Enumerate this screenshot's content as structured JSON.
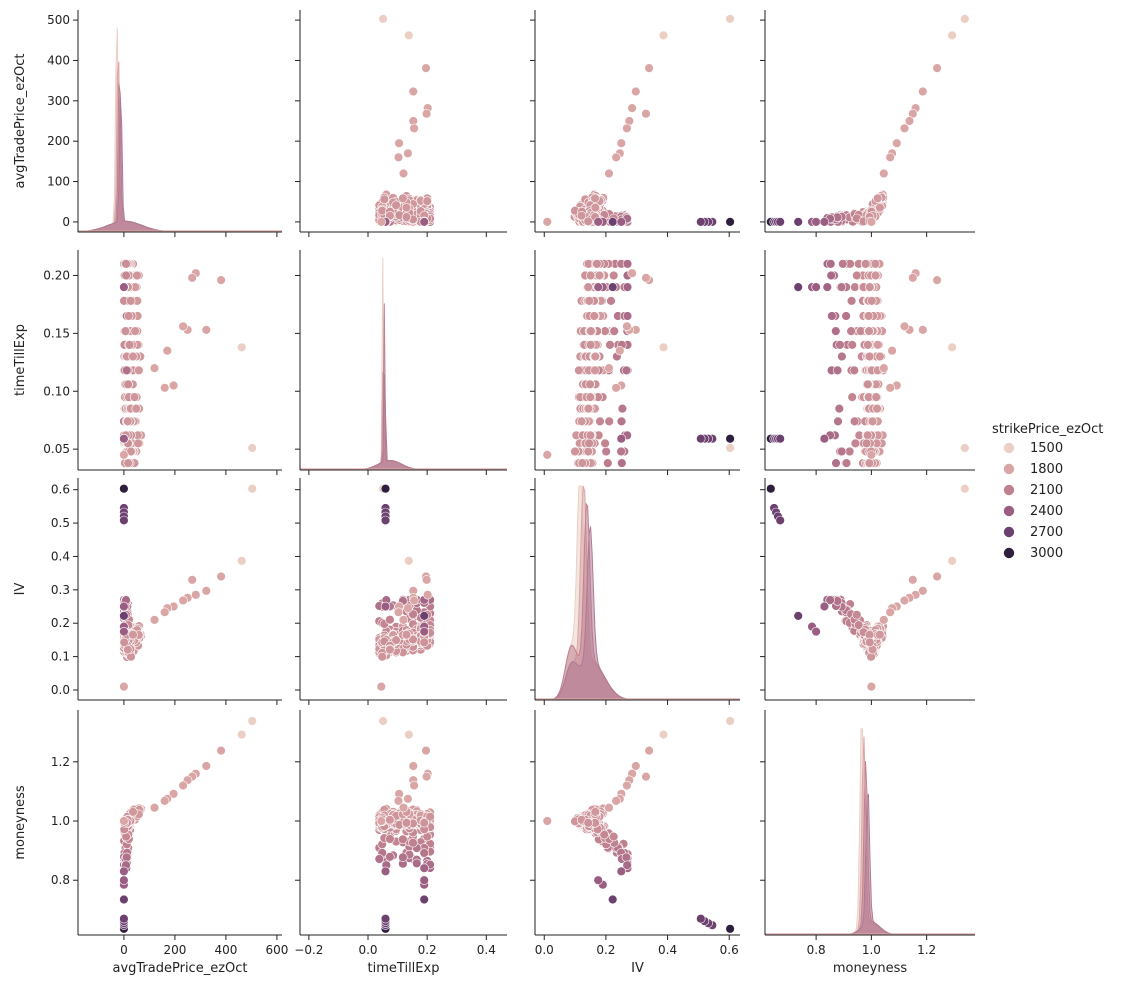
{
  "chart_data": {
    "type": "scatter",
    "variables": [
      "avgTradePrice_ezOct",
      "timeTillExp",
      "IV",
      "moneyness"
    ],
    "grid": false,
    "diagonal": "kde",
    "legend": {
      "title": "strikePrice_ezOct",
      "placement": "right",
      "entries": [
        {
          "label": "1500",
          "color": "#ebcfc5"
        },
        {
          "label": "1800",
          "color": "#d9a6a5"
        },
        {
          "label": "2100",
          "color": "#c0818f"
        },
        {
          "label": "2400",
          "color": "#9a5e83"
        },
        {
          "label": "2700",
          "color": "#6c416f"
        },
        {
          "label": "3000",
          "color": "#2f1f3f"
        }
      ]
    },
    "axes": {
      "avgTradePrice_ezOct": {
        "range": [
          -180,
          620
        ],
        "ticks": [
          0,
          200,
          400,
          600
        ],
        "tick_labels": [
          "0",
          "200",
          "400",
          "600"
        ]
      },
      "timeTillExp": {
        "range": [
          -0.23,
          0.47
        ],
        "ticks": [
          -0.2,
          0.0,
          0.2,
          0.4
        ],
        "tick_labels": [
          "−0.2",
          "0.0",
          "0.2",
          "0.4"
        ]
      },
      "IV": {
        "range": [
          -0.03,
          0.635
        ],
        "ticks": [
          0.0,
          0.2,
          0.4,
          0.6
        ],
        "tick_labels": [
          "0.0",
          "0.2",
          "0.4",
          "0.6"
        ]
      },
      "moneyness": {
        "range": [
          0.615,
          1.375
        ],
        "ticks": [
          0.8,
          1.0,
          1.2
        ],
        "tick_labels": [
          "0.8",
          "1.0",
          "1.2"
        ]
      }
    },
    "row_axes": {
      "avgTradePrice_ezOct": {
        "range": [
          -25,
          525
        ],
        "ticks": [
          0,
          100,
          200,
          300,
          400,
          500
        ],
        "tick_labels": [
          "0",
          "100",
          "200",
          "300",
          "400",
          "500"
        ]
      },
      "timeTillExp": {
        "range": [
          0.032,
          0.222
        ],
        "ticks": [
          0.05,
          0.1,
          0.15,
          0.2
        ],
        "tick_labels": [
          "0.05",
          "0.10",
          "0.15",
          "0.20"
        ]
      },
      "IV": {
        "range": [
          -0.03,
          0.635
        ],
        "ticks": [
          0.0,
          0.1,
          0.2,
          0.3,
          0.4,
          0.5,
          0.6
        ],
        "tick_labels": [
          "0.0",
          "0.1",
          "0.2",
          "0.3",
          "0.4",
          "0.5",
          "0.6"
        ]
      },
      "moneyness": {
        "range": [
          0.615,
          1.375
        ],
        "ticks": [
          0.8,
          1.0,
          1.2
        ],
        "tick_labels": [
          "0.8",
          "1.0",
          "1.2"
        ]
      }
    },
    "highlight_points": [
      {
        "avgTradePrice_ezOct": 503,
        "timeTillExp": 0.051,
        "IV": 0.603,
        "moneyness": 1.338,
        "strikePrice_ezOct": 1500
      },
      {
        "avgTradePrice_ezOct": 462,
        "timeTillExp": 0.138,
        "IV": 0.387,
        "moneyness": 1.292,
        "strikePrice_ezOct": 1500
      },
      {
        "avgTradePrice_ezOct": 381,
        "timeTillExp": 0.196,
        "IV": 0.34,
        "moneyness": 1.238,
        "strikePrice_ezOct": 1800
      },
      {
        "avgTradePrice_ezOct": 323,
        "timeTillExp": 0.153,
        "IV": 0.297,
        "moneyness": 1.186,
        "strikePrice_ezOct": 1800
      },
      {
        "avgTradePrice_ezOct": 282,
        "timeTillExp": 0.202,
        "IV": 0.285,
        "moneyness": 1.16,
        "strikePrice_ezOct": 1800
      },
      {
        "avgTradePrice_ezOct": 268,
        "timeTillExp": 0.198,
        "IV": 0.33,
        "moneyness": 1.15,
        "strikePrice_ezOct": 1800
      },
      {
        "avgTradePrice_ezOct": 250,
        "timeTillExp": 0.153,
        "IV": 0.276,
        "moneyness": 1.138,
        "strikePrice_ezOct": 1800
      },
      {
        "avgTradePrice_ezOct": 232,
        "timeTillExp": 0.156,
        "IV": 0.268,
        "moneyness": 1.12,
        "strikePrice_ezOct": 1800
      },
      {
        "avgTradePrice_ezOct": 195,
        "timeTillExp": 0.105,
        "IV": 0.25,
        "moneyness": 1.092,
        "strikePrice_ezOct": 1800
      },
      {
        "avgTradePrice_ezOct": 170,
        "timeTillExp": 0.135,
        "IV": 0.245,
        "moneyness": 1.075,
        "strikePrice_ezOct": 1800
      },
      {
        "avgTradePrice_ezOct": 160,
        "timeTillExp": 0.103,
        "IV": 0.233,
        "moneyness": 1.068,
        "strikePrice_ezOct": 1800
      },
      {
        "avgTradePrice_ezOct": 120,
        "timeTillExp": 0.12,
        "IV": 0.21,
        "moneyness": 1.045,
        "strikePrice_ezOct": 1800
      },
      {
        "avgTradePrice_ezOct": 0,
        "timeTillExp": 0.059,
        "IV": 0.603,
        "moneyness": 0.636,
        "strikePrice_ezOct": 3000
      },
      {
        "avgTradePrice_ezOct": 0,
        "timeTillExp": 0.059,
        "IV": 0.545,
        "moneyness": 0.648,
        "strikePrice_ezOct": 2700
      },
      {
        "avgTradePrice_ezOct": 0,
        "timeTillExp": 0.059,
        "IV": 0.532,
        "moneyness": 0.655,
        "strikePrice_ezOct": 2700
      },
      {
        "avgTradePrice_ezOct": 0,
        "timeTillExp": 0.059,
        "IV": 0.52,
        "moneyness": 0.662,
        "strikePrice_ezOct": 2700
      },
      {
        "avgTradePrice_ezOct": 0,
        "timeTillExp": 0.059,
        "IV": 0.508,
        "moneyness": 0.67,
        "strikePrice_ezOct": 2700
      },
      {
        "avgTradePrice_ezOct": 0,
        "timeTillExp": 0.19,
        "IV": 0.222,
        "moneyness": 0.735,
        "strikePrice_ezOct": 2700
      },
      {
        "avgTradePrice_ezOct": 0,
        "timeTillExp": 0.19,
        "IV": 0.19,
        "moneyness": 0.785,
        "strikePrice_ezOct": 2400
      },
      {
        "avgTradePrice_ezOct": 0,
        "timeTillExp": 0.19,
        "IV": 0.175,
        "moneyness": 0.8,
        "strikePrice_ezOct": 2400
      },
      {
        "avgTradePrice_ezOct": 0,
        "timeTillExp": 0.059,
        "IV": 0.25,
        "moneyness": 0.83,
        "strikePrice_ezOct": 2400
      },
      {
        "avgTradePrice_ezOct": 0,
        "timeTillExp": 0.045,
        "IV": 0.01,
        "moneyness": 1.0,
        "strikePrice_ezOct": 1800
      }
    ]
  }
}
